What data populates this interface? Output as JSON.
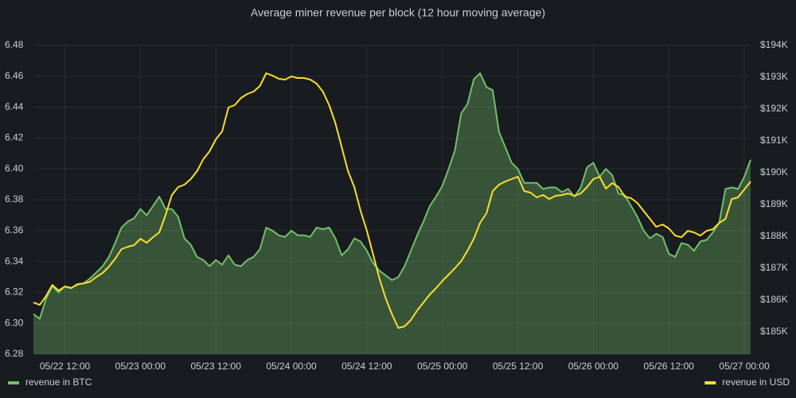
{
  "chart_data": {
    "type": "line",
    "title": "Average miner revenue per block (12 hour moving average)",
    "x": [
      "05/22 07:00",
      "05/22 08:00",
      "05/22 09:00",
      "05/22 10:00",
      "05/22 11:00",
      "05/22 12:00",
      "05/22 13:00",
      "05/22 14:00",
      "05/22 15:00",
      "05/22 16:00",
      "05/22 17:00",
      "05/22 18:00",
      "05/22 19:00",
      "05/22 20:00",
      "05/22 21:00",
      "05/22 22:00",
      "05/22 23:00",
      "05/23 00:00",
      "05/23 01:00",
      "05/23 02:00",
      "05/23 03:00",
      "05/23 04:00",
      "05/23 05:00",
      "05/23 06:00",
      "05/23 07:00",
      "05/23 08:00",
      "05/23 09:00",
      "05/23 10:00",
      "05/23 11:00",
      "05/23 12:00",
      "05/23 13:00",
      "05/23 14:00",
      "05/23 15:00",
      "05/23 16:00",
      "05/23 17:00",
      "05/23 18:00",
      "05/23 19:00",
      "05/23 20:00",
      "05/23 21:00",
      "05/23 22:00",
      "05/23 23:00",
      "05/24 00:00",
      "05/24 01:00",
      "05/24 02:00",
      "05/24 03:00",
      "05/24 04:00",
      "05/24 05:00",
      "05/24 06:00",
      "05/24 07:00",
      "05/24 08:00",
      "05/24 09:00",
      "05/24 10:00",
      "05/24 11:00",
      "05/24 12:00",
      "05/24 13:00",
      "05/24 14:00",
      "05/24 15:00",
      "05/24 16:00",
      "05/24 17:00",
      "05/24 18:00",
      "05/24 19:00",
      "05/24 20:00",
      "05/24 21:00",
      "05/24 22:00",
      "05/24 23:00",
      "05/25 00:00",
      "05/25 01:00",
      "05/25 02:00",
      "05/25 03:00",
      "05/25 04:00",
      "05/25 05:00",
      "05/25 06:00",
      "05/25 07:00",
      "05/25 08:00",
      "05/25 09:00",
      "05/25 10:00",
      "05/25 11:00",
      "05/25 12:00",
      "05/25 13:00",
      "05/25 14:00",
      "05/25 15:00",
      "05/25 16:00",
      "05/25 17:00",
      "05/25 18:00",
      "05/25 19:00",
      "05/25 20:00",
      "05/25 21:00",
      "05/25 22:00",
      "05/25 23:00",
      "05/26 00:00",
      "05/26 01:00",
      "05/26 02:00",
      "05/26 03:00",
      "05/26 04:00",
      "05/26 05:00",
      "05/26 06:00",
      "05/26 07:00",
      "05/26 08:00",
      "05/26 09:00",
      "05/26 10:00",
      "05/26 11:00",
      "05/26 12:00",
      "05/26 13:00",
      "05/26 14:00",
      "05/26 15:00",
      "05/26 16:00",
      "05/26 17:00",
      "05/26 18:00",
      "05/26 19:00",
      "05/26 20:00",
      "05/26 21:00",
      "05/26 22:00",
      "05/26 23:00",
      "05/27 00:00",
      "05/27 01:00"
    ],
    "xticks": [
      "05/22 12:00",
      "05/23 00:00",
      "05/23 12:00",
      "05/24 00:00",
      "05/24 12:00",
      "05/25 00:00",
      "05/25 12:00",
      "05/26 00:00",
      "05/26 12:00",
      "05/27 00:00"
    ],
    "ylim": [
      6.28,
      6.48
    ],
    "yticks": [
      6.28,
      {
        "value": 6.3,
        "label": "6.30"
      },
      6.32,
      6.34,
      6.36,
      6.38,
      {
        "value": 6.4,
        "label": "6.40"
      },
      6.42,
      6.44,
      6.46,
      6.48
    ],
    "y2lim": [
      184300,
      194000
    ],
    "y2ticks": [
      {
        "value": 185000,
        "label": "$185K"
      },
      {
        "value": 186000,
        "label": "$186K"
      },
      {
        "value": 187000,
        "label": "$187K"
      },
      {
        "value": 188000,
        "label": "$188K"
      },
      {
        "value": 189000,
        "label": "$189K"
      },
      {
        "value": 190000,
        "label": "$190K"
      },
      {
        "value": 191000,
        "label": "$191K"
      },
      {
        "value": 192000,
        "label": "$192K"
      },
      {
        "value": 193000,
        "label": "$193K"
      },
      {
        "value": 194000,
        "label": "$194K"
      }
    ],
    "grid": true,
    "series": [
      {
        "name": "revenue in BTC",
        "color": "#73bf69",
        "fill": true,
        "axis": "y",
        "values": [
          6.306,
          6.303,
          6.316,
          6.324,
          6.32,
          6.324,
          6.323,
          6.325,
          6.326,
          6.329,
          6.333,
          6.337,
          6.343,
          6.352,
          6.362,
          6.366,
          6.368,
          6.374,
          6.37,
          6.376,
          6.382,
          6.374,
          6.374,
          6.369,
          6.355,
          6.351,
          6.343,
          6.341,
          6.337,
          6.341,
          6.338,
          6.344,
          6.338,
          6.337,
          6.341,
          6.343,
          6.348,
          6.362,
          6.36,
          6.357,
          6.356,
          6.36,
          6.357,
          6.357,
          6.356,
          6.362,
          6.361,
          6.362,
          6.355,
          6.344,
          6.348,
          6.355,
          6.353,
          6.347,
          6.339,
          6.334,
          6.331,
          6.328,
          6.33,
          6.337,
          6.347,
          6.357,
          6.366,
          6.376,
          6.382,
          6.389,
          6.4,
          6.412,
          6.436,
          6.442,
          6.458,
          6.462,
          6.453,
          6.451,
          6.424,
          6.414,
          6.404,
          6.4,
          6.391,
          6.391,
          6.391,
          6.387,
          6.388,
          6.388,
          6.385,
          6.387,
          6.382,
          6.388,
          6.401,
          6.404,
          6.395,
          6.4,
          6.396,
          6.384,
          6.383,
          6.376,
          6.369,
          6.36,
          6.355,
          6.358,
          6.356,
          6.345,
          6.343,
          6.352,
          6.351,
          6.347,
          6.353,
          6.354,
          6.359,
          6.365,
          6.387,
          6.388,
          6.387,
          6.395,
          6.406
        ]
      },
      {
        "name": "revenue in USD",
        "color": "#fade2a",
        "fill": false,
        "axis": "y2",
        "values": [
          185925,
          185850,
          186125,
          186475,
          186300,
          186425,
          186375,
          186500,
          186525,
          186575,
          186725,
          186850,
          187050,
          187300,
          187600,
          187675,
          187725,
          187925,
          187800,
          187975,
          188125,
          188675,
          189300,
          189550,
          189625,
          189800,
          190050,
          190425,
          190675,
          191050,
          191300,
          192050,
          192125,
          192350,
          192475,
          192550,
          192725,
          193125,
          193050,
          192950,
          192925,
          193025,
          192975,
          192975,
          192925,
          192800,
          192550,
          192125,
          191550,
          190800,
          190050,
          189550,
          188800,
          188175,
          187425,
          186675,
          186050,
          185550,
          185125,
          185175,
          185375,
          185675,
          185925,
          186175,
          186375,
          186600,
          186800,
          187000,
          187225,
          187550,
          187925,
          188425,
          188725,
          189425,
          189625,
          189725,
          189800,
          189875,
          189425,
          189375,
          189225,
          189300,
          189175,
          189275,
          189300,
          189350,
          189275,
          189350,
          189550,
          189800,
          189875,
          189500,
          189675,
          189550,
          189250,
          189200,
          189050,
          188800,
          188550,
          188300,
          188375,
          188250,
          188025,
          187975,
          188175,
          188125,
          188025,
          188175,
          188225,
          188425,
          188550,
          189175,
          189225,
          189475,
          189725
        ]
      }
    ],
    "legend": "bottom"
  }
}
